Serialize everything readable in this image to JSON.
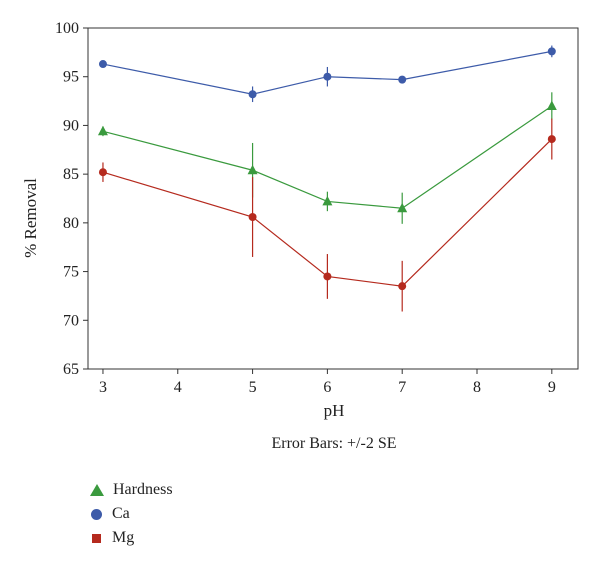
{
  "chart_data": {
    "type": "line",
    "xlabel": "pH",
    "ylabel": "% Removal",
    "note": "Error Bars: +/-2 SE",
    "xlim": [
      2.8,
      9.35
    ],
    "ylim": [
      65,
      100
    ],
    "x_ticks": [
      3,
      4,
      5,
      6,
      7,
      8,
      9
    ],
    "y_ticks": [
      65,
      70,
      75,
      80,
      85,
      90,
      95,
      100
    ],
    "grid": false,
    "legend_position": "bottom-left",
    "series": [
      {
        "name": "Hardness",
        "marker": "triangle",
        "color": "#3a9a3e",
        "x": [
          3,
          5,
          6,
          7,
          9
        ],
        "y": [
          89.4,
          85.4,
          82.2,
          81.5,
          92.0
        ],
        "err": [
          0.5,
          2.8,
          1.0,
          1.6,
          1.4
        ]
      },
      {
        "name": "Ca",
        "marker": "circle",
        "color": "#3d5ba9",
        "x": [
          3,
          5,
          6,
          7,
          9
        ],
        "y": [
          96.3,
          93.2,
          95.0,
          94.7,
          97.6
        ],
        "err": [
          0.3,
          0.8,
          1.0,
          0.3,
          0.6
        ]
      },
      {
        "name": "Mg",
        "marker": "square",
        "color": "#b52a1e",
        "x": [
          3,
          5,
          6,
          7,
          9
        ],
        "y": [
          85.2,
          80.6,
          74.5,
          73.5,
          88.6
        ],
        "err": [
          1.0,
          4.1,
          2.3,
          2.6,
          2.1
        ]
      }
    ]
  }
}
